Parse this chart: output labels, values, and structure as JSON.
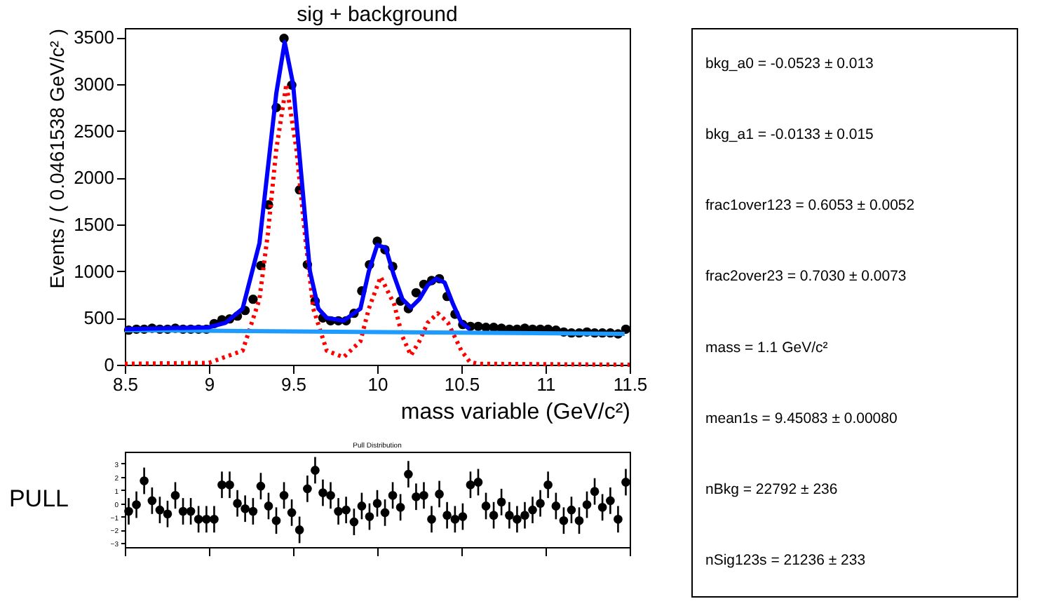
{
  "chart_data": [
    {
      "type": "scatter",
      "title": "sig + background",
      "xlabel": "mass variable (GeV/c²)",
      "ylabel": "Events / ( 0.0461538 GeV/c² )",
      "xlim": [
        8.5,
        11.5
      ],
      "xticks": [
        8.5,
        9,
        9.5,
        10,
        10.5,
        11,
        11.5
      ],
      "ylim": [
        0,
        3600
      ],
      "yticks": [
        0,
        500,
        1000,
        1500,
        2000,
        2500,
        3000,
        3500
      ],
      "grid": false,
      "x": [
        8.523,
        8.569,
        8.615,
        8.662,
        8.708,
        8.754,
        8.8,
        8.846,
        8.892,
        8.938,
        8.985,
        9.031,
        9.077,
        9.123,
        9.169,
        9.215,
        9.262,
        9.308,
        9.354,
        9.4,
        9.446,
        9.492,
        9.538,
        9.585,
        9.631,
        9.677,
        9.723,
        9.769,
        9.815,
        9.862,
        9.908,
        9.954,
        10.0,
        10.046,
        10.092,
        10.138,
        10.185,
        10.231,
        10.277,
        10.323,
        10.369,
        10.415,
        10.462,
        10.508,
        10.554,
        10.6,
        10.646,
        10.692,
        10.738,
        10.785,
        10.831,
        10.877,
        10.923,
        10.969,
        11.015,
        11.062,
        11.108,
        11.154,
        11.2,
        11.246,
        11.292,
        11.338,
        11.385,
        11.431,
        11.477
      ],
      "series": [
        {
          "type": "scatter",
          "marker": "circle",
          "color": "#000000",
          "values": [
            370,
            380,
            380,
            390,
            380,
            380,
            390,
            380,
            380,
            380,
            380,
            440,
            480,
            490,
            520,
            580,
            700,
            1060,
            1710,
            2750,
            3490,
            2990,
            1870,
            1070,
            680,
            500,
            470,
            470,
            470,
            550,
            790,
            1070,
            1320,
            1230,
            1050,
            680,
            600,
            770,
            860,
            900,
            920,
            730,
            540,
            430,
            410,
            410,
            400,
            400,
            390,
            380,
            380,
            390,
            380,
            380,
            380,
            370,
            350,
            340,
            340,
            350,
            340,
            340,
            340,
            330,
            380
          ]
        },
        {
          "type": "line",
          "color": "#ff0000",
          "line_style": "dotted",
          "x": [
            8.5,
            9.0,
            9.2,
            9.3,
            9.35,
            9.4,
            9.46,
            9.52,
            9.57,
            9.62,
            9.7,
            9.8,
            9.9,
            9.95,
            10.02,
            10.1,
            10.15,
            10.2,
            10.25,
            10.3,
            10.36,
            10.42,
            10.5,
            10.55,
            10.6,
            11.5
          ],
          "values": [
            10,
            20,
            150,
            700,
            1400,
            2300,
            3000,
            2300,
            1400,
            600,
            150,
            80,
            250,
            600,
            940,
            650,
            300,
            100,
            250,
            450,
            550,
            450,
            150,
            30,
            10,
            0
          ]
        },
        {
          "type": "line",
          "color": "#1e9bff",
          "line_style": "solid",
          "x": [
            8.5,
            11.47
          ],
          "values": [
            370,
            330
          ]
        },
        {
          "type": "line",
          "color": "#0000ff",
          "line_style": "solid",
          "x": [
            8.5,
            9.0,
            9.1,
            9.2,
            9.3,
            9.35,
            9.4,
            9.45,
            9.5,
            9.55,
            9.6,
            9.65,
            9.7,
            9.8,
            9.9,
            9.95,
            10.0,
            10.05,
            10.1,
            10.15,
            10.2,
            10.25,
            10.3,
            10.35,
            10.4,
            10.45,
            10.5,
            10.55
          ],
          "values": [
            380,
            400,
            450,
            600,
            1300,
            2100,
            2900,
            3450,
            3000,
            2000,
            1000,
            600,
            500,
            470,
            600,
            1000,
            1280,
            1250,
            950,
            700,
            610,
            700,
            850,
            920,
            880,
            650,
            450,
            380
          ]
        }
      ]
    },
    {
      "type": "scatter",
      "title": "Pull Distribution",
      "annotations": [
        "PULL"
      ],
      "xlim": [
        8.5,
        11.5
      ],
      "xticks": [
        8.5,
        9,
        9.5,
        10,
        10.5,
        11,
        11.5
      ],
      "ylim": [
        -3.3,
        3.9
      ],
      "yticks": [
        -3,
        -2,
        -1,
        0,
        1,
        2,
        3
      ],
      "tick_labels": "y",
      "grid": false,
      "x": [
        8.523,
        8.569,
        8.615,
        8.662,
        8.708,
        8.754,
        8.8,
        8.846,
        8.892,
        8.938,
        8.985,
        9.031,
        9.077,
        9.123,
        9.169,
        9.215,
        9.262,
        9.308,
        9.354,
        9.4,
        9.446,
        9.492,
        9.538,
        9.585,
        9.631,
        9.677,
        9.723,
        9.769,
        9.815,
        9.862,
        9.908,
        9.954,
        10.0,
        10.046,
        10.092,
        10.138,
        10.185,
        10.231,
        10.277,
        10.323,
        10.369,
        10.415,
        10.462,
        10.508,
        10.554,
        10.6,
        10.646,
        10.692,
        10.738,
        10.785,
        10.831,
        10.877,
        10.923,
        10.969,
        11.015,
        11.062,
        11.108,
        11.154,
        11.2,
        11.246,
        11.292,
        11.338,
        11.385,
        11.431,
        11.477
      ],
      "series": [
        {
          "type": "scatter",
          "marker": "circle",
          "color": "#000000",
          "values": [
            -0.6,
            -0.1,
            1.7,
            0.2,
            -0.5,
            -0.8,
            0.6,
            -0.6,
            -0.6,
            -1.2,
            -1.2,
            -1.2,
            1.4,
            1.4,
            0,
            -0.4,
            -0.6,
            1.3,
            -0.2,
            -1.3,
            0.6,
            -0.7,
            -2,
            1.1,
            2.5,
            0.8,
            0.6,
            -0.6,
            -0.5,
            -1.4,
            -0.2,
            -1,
            0,
            -0.7,
            0.6,
            -0.3,
            2.2,
            0.5,
            0.6,
            -1.2,
            0.7,
            -0.9,
            -1.2,
            -1,
            1.4,
            1.6,
            -0.2,
            -0.9,
            0.1,
            -0.9,
            -1.2,
            -0.9,
            -0.5,
            0,
            1.4,
            -0.2,
            -1.3,
            -0.5,
            -1.3,
            -0.1,
            0.9,
            -0.3,
            0.2,
            -1.2,
            1.6
          ],
          "errors": [
            1,
            1,
            1,
            1,
            1,
            1,
            1,
            1,
            1,
            1,
            1,
            1,
            1,
            1,
            1,
            1,
            1,
            1,
            1,
            1,
            1,
            1,
            1,
            1,
            1,
            1,
            1,
            1,
            1,
            1,
            1,
            1,
            1,
            1,
            1,
            1,
            1,
            1,
            1,
            1,
            1,
            1,
            1,
            1,
            1,
            1,
            1,
            1,
            1,
            1,
            1,
            1,
            1,
            1,
            1,
            1,
            1,
            1,
            1,
            1,
            1,
            1,
            1,
            1,
            1
          ]
        }
      ]
    },
    {
      "type": "other",
      "annotations": [
        "bkg_a0 = -0.0523 ± 0.013",
        "bkg_a1 = -0.0133 ± 0.015",
        "frac1over123 =  0.6053 ± 0.0052",
        "frac2over23 =  0.7030 ± 0.0073",
        "mass =  1.1 GeV/c²",
        "mean1s =  9.45083 ± 0.00080",
        "nBkg =  22792 ± 236",
        "nSig123s =  21236 ± 233"
      ]
    }
  ]
}
